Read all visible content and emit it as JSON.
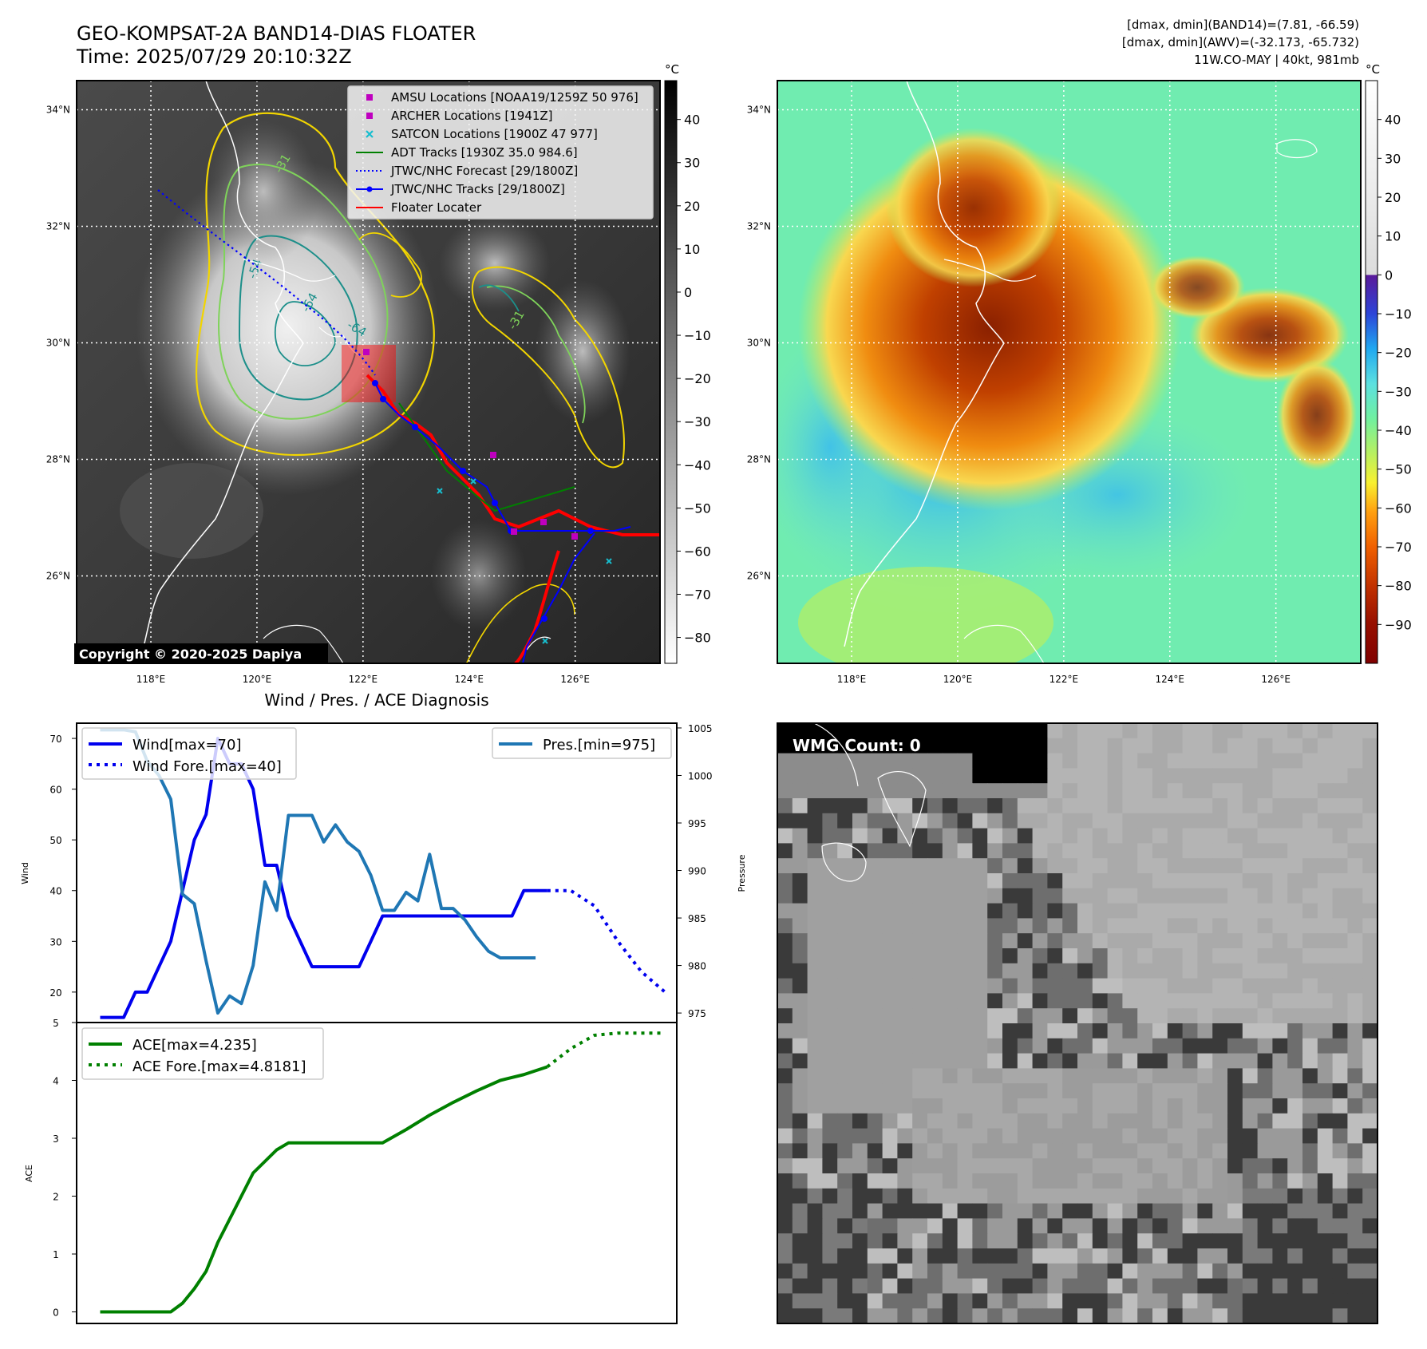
{
  "header": {
    "title_line1": "GEO-KOMPSAT-2A BAND14-DIAS FLOATER",
    "title_line2": "Time: 2025/07/29 20:10:32Z",
    "info_line1": "[dmax, dmin](BAND14)=(7.81, -66.59)",
    "info_line2": "[dmax, dmin](AWV)=(-32.173, -65.732)",
    "info_line3": "11W.CO-MAY | 40kt, 981mb"
  },
  "colors": {
    "wind": "#0000ee",
    "pres": "#1f77b4",
    "ace": "#008000",
    "coast": "#ffffff",
    "track": "#0000ff",
    "floater": "#ff0000",
    "amsu": "#bf00bf",
    "satcon": "#17becf",
    "adt": "#008000"
  },
  "map": {
    "lon_ticks": [
      "118°E",
      "120°E",
      "122°E",
      "124°E",
      "126°E"
    ],
    "lat_ticks": [
      "34°N",
      "32°N",
      "30°N",
      "28°N",
      "26°N"
    ],
    "lon_values": [
      118,
      120,
      122,
      124,
      126
    ],
    "lat_values": [
      34,
      32,
      30,
      28,
      26
    ],
    "lon_range": [
      116.6,
      127.6
    ],
    "lat_range": [
      24.5,
      34.5
    ],
    "copyright": "Copyright © 2020-2025 Dapiya",
    "contour_labels": [
      "-31",
      "-54",
      "-64",
      "-64",
      "-31"
    ],
    "legend": [
      {
        "label": "AMSU Locations [NOAA19/1259Z 50 976]",
        "symbol": "square",
        "color": "#bf00bf"
      },
      {
        "label": "ARCHER Locations [1941Z]",
        "symbol": "square",
        "color": "#bf00bf"
      },
      {
        "label": "SATCON Locations [1900Z 47 977]",
        "symbol": "x",
        "color": "#17becf"
      },
      {
        "label": "ADT Tracks [1930Z 35.0 984.6]",
        "symbol": "line",
        "color": "#008000"
      },
      {
        "label": "JTWC/NHC Forecast [29/1800Z]",
        "symbol": "dotted",
        "color": "#0000ff"
      },
      {
        "label": "JTWC/NHC Tracks [29/1800Z]",
        "symbol": "line-dot",
        "color": "#0000ff"
      },
      {
        "label": "Floater Locater",
        "symbol": "line",
        "color": "#ff0000"
      }
    ]
  },
  "colorbar_ir": {
    "unit": "°C",
    "ticks": [
      "40",
      "30",
      "20",
      "10",
      "0",
      "−10",
      "−20",
      "−30",
      "−40",
      "−50",
      "−60",
      "−70",
      "−80"
    ],
    "values": [
      40,
      30,
      20,
      10,
      0,
      -10,
      -20,
      -30,
      -40,
      -50,
      -60,
      -70,
      -80
    ],
    "range": [
      -86,
      49
    ]
  },
  "colorbar_wv": {
    "unit": "°C",
    "ticks": [
      "40",
      "30",
      "20",
      "10",
      "0",
      "−10",
      "−20",
      "−30",
      "−40",
      "−50",
      "−60",
      "−70",
      "−80",
      "−90"
    ],
    "values": [
      40,
      30,
      20,
      10,
      0,
      -10,
      -20,
      -30,
      -40,
      -50,
      -60,
      -70,
      -80,
      -90
    ],
    "range": [
      -100,
      50
    ]
  },
  "wmg": {
    "label": "WMG Count: 0"
  },
  "chart_data": [
    {
      "type": "line",
      "title": "Wind / Pres. / ACE Diagnosis",
      "ylabel": "Wind",
      "ylabel_right": "Pressure",
      "ylim": [
        14,
        73
      ],
      "ylim_right": [
        974,
        1005.5
      ],
      "xlim": [
        -4,
        98
      ],
      "yticks": [
        20,
        30,
        40,
        50,
        60,
        70
      ],
      "yticks_right": [
        975,
        980,
        985,
        990,
        995,
        1000,
        1005
      ],
      "legend_left": [
        "Wind[max=70]",
        "Wind Fore.[max=40]"
      ],
      "legend_right": [
        "Pres.[min=975]"
      ],
      "series": [
        {
          "name": "Wind[max=70]",
          "axis": "left",
          "style": "solid",
          "x": [
            0,
            2,
            4,
            6,
            8,
            10,
            12,
            14,
            16,
            18,
            20,
            22,
            24,
            26,
            28,
            30,
            32,
            34,
            36,
            38,
            40,
            42,
            44,
            46,
            48,
            50,
            52,
            54,
            56,
            58,
            60,
            62,
            64,
            66,
            68,
            70,
            72,
            74,
            76
          ],
          "y": [
            15,
            15,
            15,
            20,
            20,
            25,
            30,
            40,
            50,
            55,
            70,
            65,
            65,
            60,
            45,
            45,
            35,
            30,
            25,
            25,
            25,
            25,
            25,
            30,
            35,
            35,
            35,
            35,
            35,
            35,
            35,
            35,
            35,
            35,
            35,
            35,
            40,
            40,
            40
          ]
        },
        {
          "name": "Wind Fore.[max=40]",
          "axis": "left",
          "style": "dotted",
          "x": [
            76,
            80,
            84,
            88,
            92,
            96
          ],
          "y": [
            40,
            40,
            37,
            30,
            24,
            20
          ]
        },
        {
          "name": "Pres.[min=975]",
          "axis": "right",
          "style": "solid",
          "x": [
            0,
            2,
            4,
            6,
            8,
            10,
            12,
            14,
            16,
            18,
            20,
            22,
            24,
            26,
            28,
            30,
            32,
            34,
            36,
            38,
            40,
            42,
            44,
            46,
            48,
            50,
            52,
            54,
            56,
            58,
            60,
            62,
            64,
            66,
            68,
            70,
            72,
            74
          ],
          "y": [
            1004.8,
            1004.8,
            1004.8,
            1004.6,
            1001.5,
            1000,
            997.5,
            987.5,
            986.5,
            980.5,
            975,
            976.8,
            976,
            980,
            988.8,
            985.8,
            995.8,
            995.8,
            995.8,
            993,
            994.8,
            993,
            992,
            989.5,
            985.8,
            985.8,
            987.7,
            986.8,
            991.7,
            986,
            986,
            984.8,
            983,
            981.5,
            980.8,
            980.8,
            980.8,
            980.8
          ]
        }
      ]
    },
    {
      "type": "line",
      "ylabel": "ACE",
      "ylim": [
        -0.2,
        5
      ],
      "xlim": [
        -4,
        98
      ],
      "yticks": [
        0,
        1,
        2,
        3,
        4,
        5
      ],
      "legend": [
        "ACE[max=4.235]",
        "ACE Fore.[max=4.8181]"
      ],
      "series": [
        {
          "name": "ACE[max=4.235]",
          "style": "solid",
          "x": [
            0,
            4,
            8,
            12,
            14,
            16,
            18,
            20,
            22,
            24,
            26,
            28,
            30,
            32,
            34,
            36,
            40,
            44,
            48,
            52,
            56,
            60,
            64,
            68,
            72,
            76
          ],
          "y": [
            0,
            0,
            0,
            0,
            0.15,
            0.4,
            0.7,
            1.2,
            1.6,
            2.0,
            2.4,
            2.6,
            2.8,
            2.92,
            2.92,
            2.92,
            2.92,
            2.92,
            2.92,
            3.15,
            3.4,
            3.62,
            3.82,
            4.0,
            4.1,
            4.235
          ]
        },
        {
          "name": "ACE Fore.[max=4.8181]",
          "style": "dotted",
          "x": [
            76,
            80,
            84,
            88,
            92,
            96
          ],
          "y": [
            4.235,
            4.55,
            4.78,
            4.8181,
            4.8181,
            4.8181
          ]
        }
      ]
    }
  ]
}
